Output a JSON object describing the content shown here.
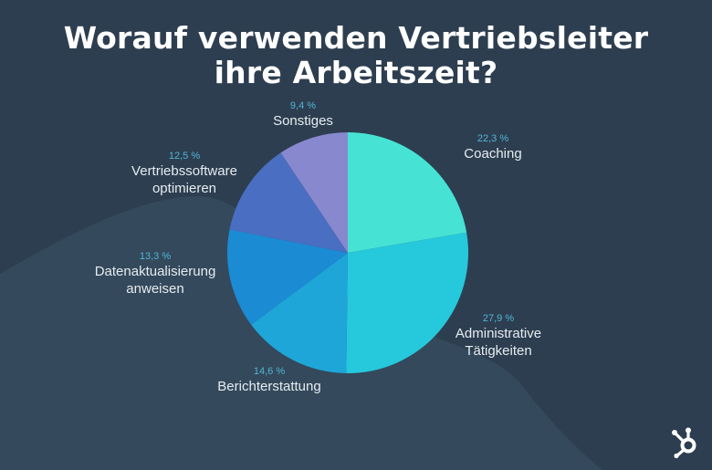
{
  "title_lines": [
    "Worauf verwenden Vertriebsleiter",
    "ihre Arbeitszeit?"
  ],
  "chart_data": {
    "type": "pie",
    "title": "Worauf verwenden Vertriebsleiter ihre Arbeitszeit?",
    "slices": [
      {
        "label": "Coaching",
        "value": 22.3,
        "value_label": "22,3 %",
        "color": "#46e3d4"
      },
      {
        "label": "Administrative Tätigkeiten",
        "value": 27.9,
        "value_label": "27,9 %",
        "color": "#26c8dc"
      },
      {
        "label": "Berichterstattung",
        "value": 14.6,
        "value_label": "14,6 %",
        "color": "#1ea6d8"
      },
      {
        "label": "Datenaktualisierung anweisen",
        "value": 13.3,
        "value_label": "13,3 %",
        "color": "#1b8bd4"
      },
      {
        "label": "Vertriebssoftware optimieren",
        "value": 12.5,
        "value_label": "12,5 %",
        "color": "#4a6ec1"
      },
      {
        "label": "Sonstiges",
        "value": 9.4,
        "value_label": "9,4 %",
        "color": "#8888cf"
      }
    ]
  },
  "colors": {
    "background": "#2d3e50",
    "background_shape": "#34495c",
    "value_label": "#52b5d4",
    "label": "#e6ecf0"
  },
  "logo_icon": "hubspot-sprocket-icon"
}
